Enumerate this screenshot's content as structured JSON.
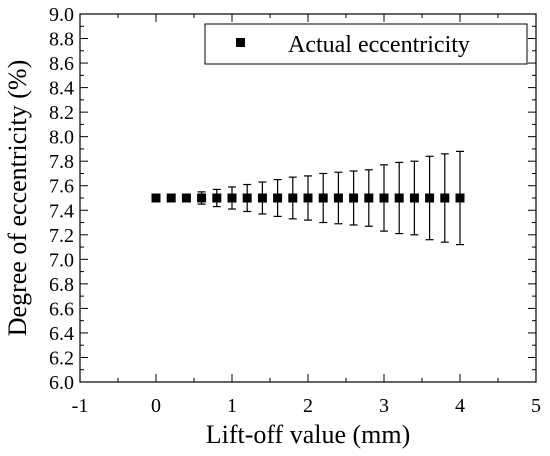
{
  "chart_data": {
    "type": "scatter",
    "title": "",
    "xlabel": "Lift-off value (mm)",
    "ylabel": "Degree of eccentricity (%)",
    "xlim": [
      -1,
      5
    ],
    "ylim": [
      6.0,
      9.0
    ],
    "x_ticks": [
      "-1",
      "0",
      "1",
      "2",
      "3",
      "4",
      "5"
    ],
    "y_ticks": [
      "6.0",
      "6.2",
      "6.4",
      "6.6",
      "6.8",
      "7.0",
      "7.2",
      "7.4",
      "7.6",
      "7.8",
      "8.0",
      "8.2",
      "8.4",
      "8.6",
      "8.8",
      "9.0"
    ],
    "grid": false,
    "legend_position": "top-right",
    "series": [
      {
        "name": "Actual eccentricity",
        "color": "#000000",
        "marker": "square",
        "x": [
          0,
          0.2,
          0.4,
          0.6,
          0.8,
          1.0,
          1.2,
          1.4,
          1.6,
          1.8,
          2.0,
          2.2,
          2.4,
          2.6,
          2.8,
          3.0,
          3.2,
          3.4,
          3.6,
          3.8,
          4.0
        ],
        "y": [
          7.5,
          7.5,
          7.5,
          7.5,
          7.5,
          7.5,
          7.5,
          7.5,
          7.5,
          7.5,
          7.5,
          7.5,
          7.5,
          7.5,
          7.5,
          7.5,
          7.5,
          7.5,
          7.5,
          7.5,
          7.5
        ],
        "error": [
          0,
          0,
          0,
          0.05,
          0.07,
          0.09,
          0.11,
          0.13,
          0.15,
          0.17,
          0.18,
          0.2,
          0.21,
          0.22,
          0.23,
          0.27,
          0.29,
          0.3,
          0.34,
          0.36,
          0.38
        ]
      }
    ]
  }
}
